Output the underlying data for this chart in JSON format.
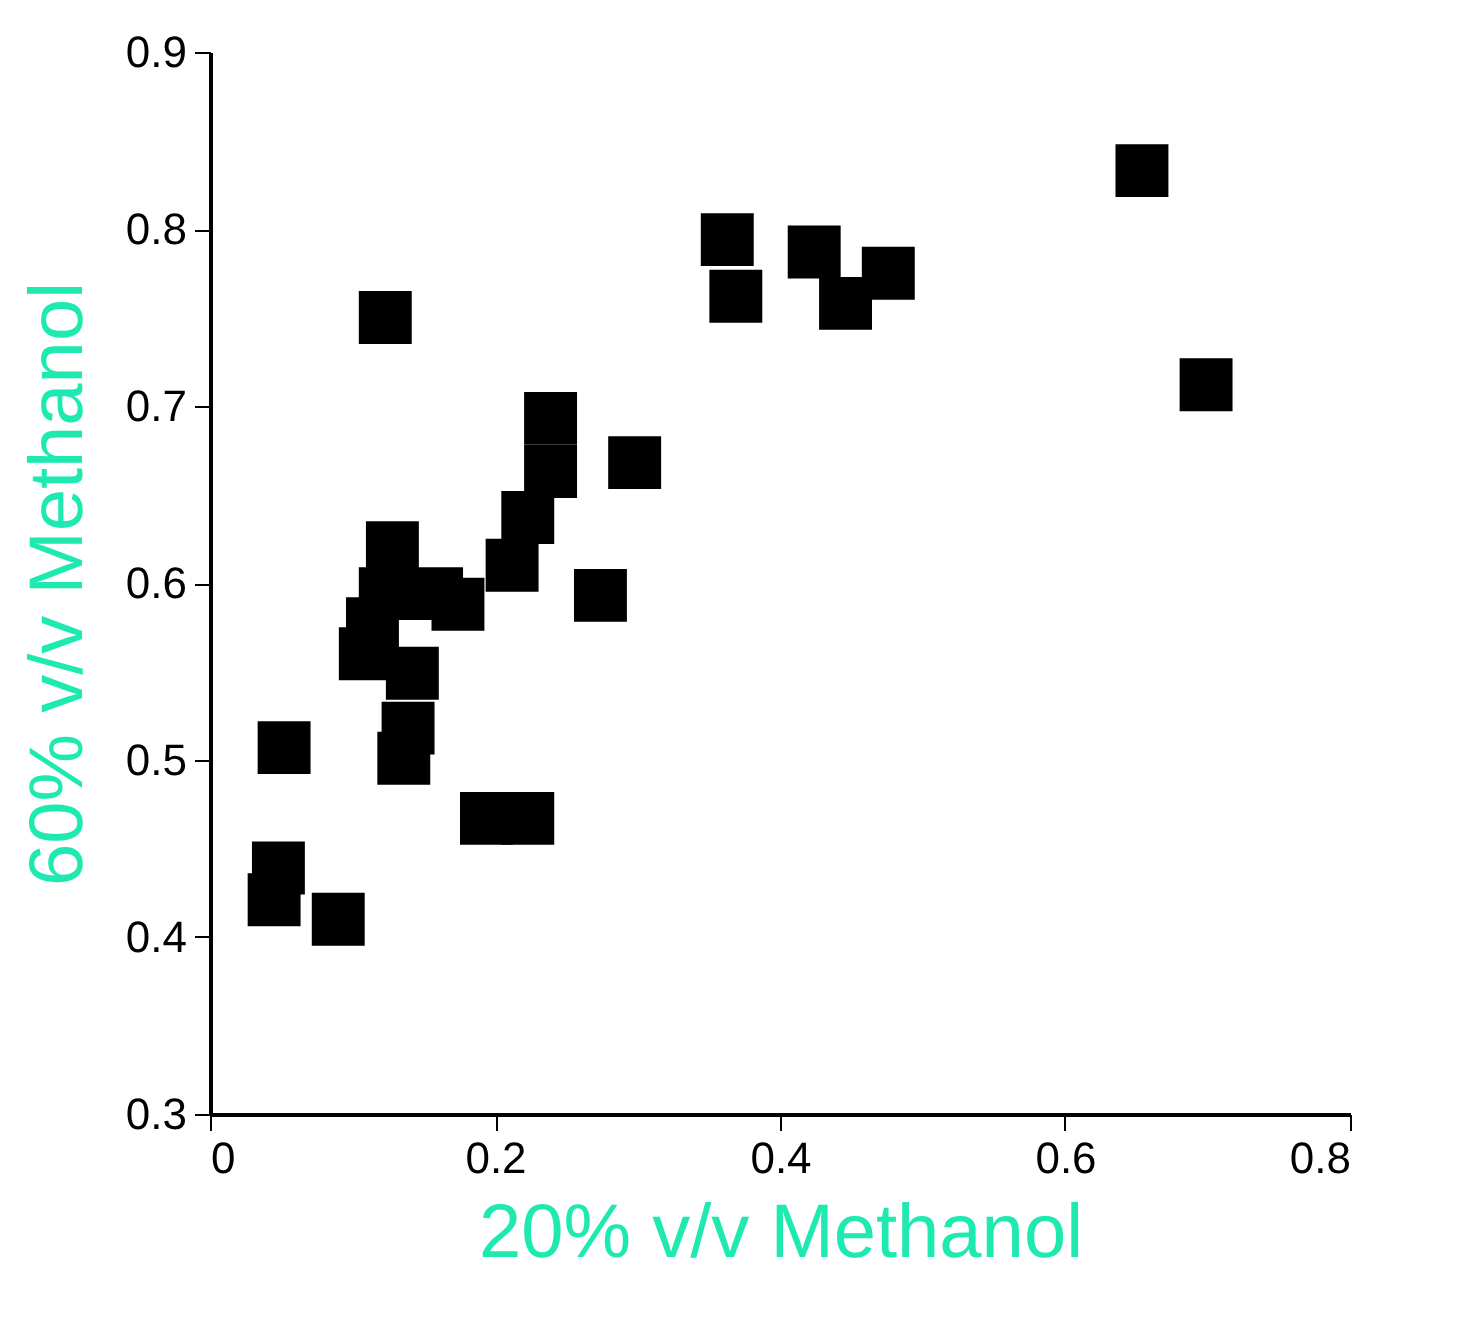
{
  "chart_data": {
    "type": "scatter",
    "xlabel": "20% v/v Methanol",
    "ylabel": "60% v/v Methanol",
    "x": [
      0.123,
      0.239,
      0.239,
      0.298,
      0.223,
      0.212,
      0.128,
      0.123,
      0.159,
      0.174,
      0.114,
      0.109,
      0.142,
      0.139,
      0.136,
      0.052,
      0.194,
      0.223,
      0.048,
      0.045,
      0.09,
      0.274,
      0.363,
      0.369,
      0.424,
      0.476,
      0.446,
      0.654,
      0.699
    ],
    "series": [
      {
        "color": "#000000",
        "values": [
          0.75,
          0.693,
          0.663,
          0.668,
          0.637,
          0.61,
          0.62,
          0.594,
          0.594,
          0.588,
          0.577,
          0.56,
          0.549,
          0.518,
          0.501,
          0.507,
          0.467,
          0.467,
          0.439,
          0.421,
          0.41,
          0.593,
          0.794,
          0.762,
          0.787,
          0.775,
          0.758,
          0.833,
          0.712
        ]
      }
    ],
    "xlim": [
      0,
      0.8
    ],
    "ylim": [
      0.3,
      0.9
    ],
    "xticks": [
      0,
      0.2,
      0.4,
      0.6,
      0.8
    ],
    "yticks": [
      0.3,
      0.4,
      0.5,
      0.6,
      0.7,
      0.8,
      0.9
    ],
    "marker": "square",
    "grid": false
  }
}
